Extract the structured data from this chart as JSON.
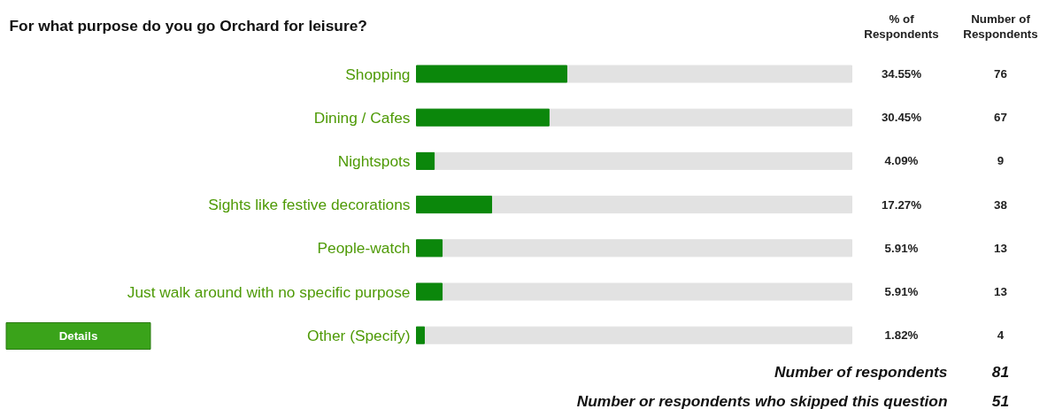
{
  "chart_data": {
    "type": "bar",
    "orientation": "horizontal",
    "title": "For what purpose do you go Orchard for leisure?",
    "categories": [
      "Shopping",
      "Dining / Cafes",
      "Nightspots",
      "Sights like festive decorations",
      "People-watch",
      "Just walk around with no specific purpose",
      "Other (Specify)"
    ],
    "values": [
      34.55,
      30.45,
      4.09,
      17.27,
      5.91,
      5.91,
      1.82
    ],
    "value_labels": [
      "34.55%",
      "30.45%",
      "4.09%",
      "17.27%",
      "5.91%",
      "5.91%",
      "1.82%"
    ],
    "color": "#0b870b",
    "xlim": [
      0,
      100
    ],
    "tick_labels": false,
    "grid": false,
    "annotations": [
      "% of Respondents",
      "Number of Respondents",
      "Details",
      "Number of respondents",
      "81",
      "Number or respondents who skipped this question",
      "51",
      "76",
      "67",
      "9",
      "38",
      "13",
      "13",
      "4"
    ]
  }
}
